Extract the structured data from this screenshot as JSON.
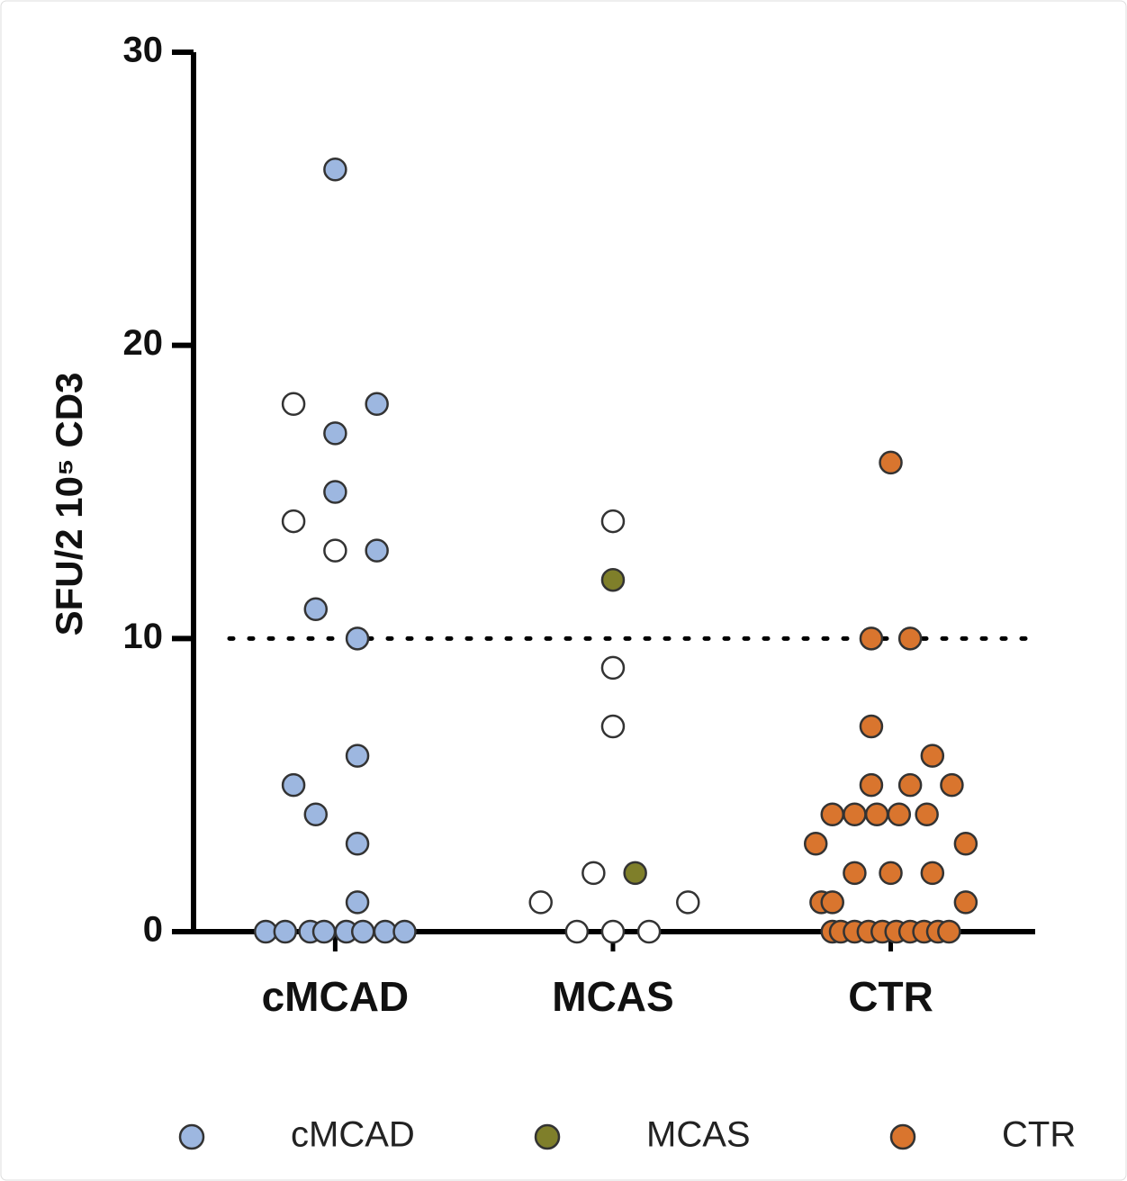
{
  "chart_data": {
    "type": "scatter",
    "y_label": "SFU/2 10⁵ CD3",
    "xlim": [
      0.49,
      3.52
    ],
    "xticks": [
      {
        "value": 1,
        "label": "cMCAD"
      },
      {
        "value": 2,
        "label": "MCAS"
      },
      {
        "value": 3,
        "label": "CTR"
      }
    ],
    "ylim": [
      0,
      30
    ],
    "yticks": [
      0,
      10,
      20,
      30
    ],
    "reference_line": 10,
    "legend": "bottom",
    "series": [
      {
        "name": "cMCAD",
        "color": "#9db7e0",
        "x": [
          1.0,
          1.0,
          1.15,
          1.0,
          1.15,
          0.93,
          1.08,
          1.08,
          0.85,
          0.93,
          1.08,
          1.08,
          0.75,
          0.82,
          0.91,
          0.96,
          1.04,
          1.1,
          1.18,
          1.25
        ],
        "values": [
          26,
          17,
          18,
          15,
          13,
          11,
          10,
          6,
          5,
          4,
          3,
          1,
          0,
          0,
          0,
          0,
          0,
          0,
          0,
          0
        ]
      },
      {
        "name": "MCAS",
        "color": "#7f7f2a",
        "x": [
          2.0,
          2.08
        ],
        "values": [
          12,
          2
        ]
      },
      {
        "name": "CTR",
        "color": "#d9752e",
        "x": [
          3.0,
          2.93,
          3.07,
          2.93,
          3.15,
          2.93,
          3.07,
          3.22,
          2.79,
          2.87,
          2.95,
          3.03,
          3.13,
          2.73,
          3.27,
          2.87,
          3.0,
          3.15,
          2.75,
          2.79,
          3.27,
          2.79,
          2.82,
          2.87,
          2.92,
          2.97,
          3.02,
          3.07,
          3.12,
          3.17,
          3.21
        ],
        "values": [
          16,
          10,
          10,
          7,
          6,
          5,
          5,
          5,
          4,
          4,
          4,
          4,
          4,
          3,
          3,
          2,
          2,
          2,
          1,
          1,
          1,
          0,
          0,
          0,
          0,
          0,
          0,
          0,
          0,
          0,
          0
        ]
      },
      {
        "color": "#ffffff",
        "x": [
          0.85,
          0.85,
          1.0,
          2.0,
          2.0,
          2.0,
          1.93,
          1.74,
          2.27,
          1.87,
          2.0,
          2.13
        ],
        "values": [
          18,
          14,
          13,
          14,
          9,
          7,
          2,
          1,
          1,
          0,
          0,
          0
        ]
      }
    ]
  }
}
